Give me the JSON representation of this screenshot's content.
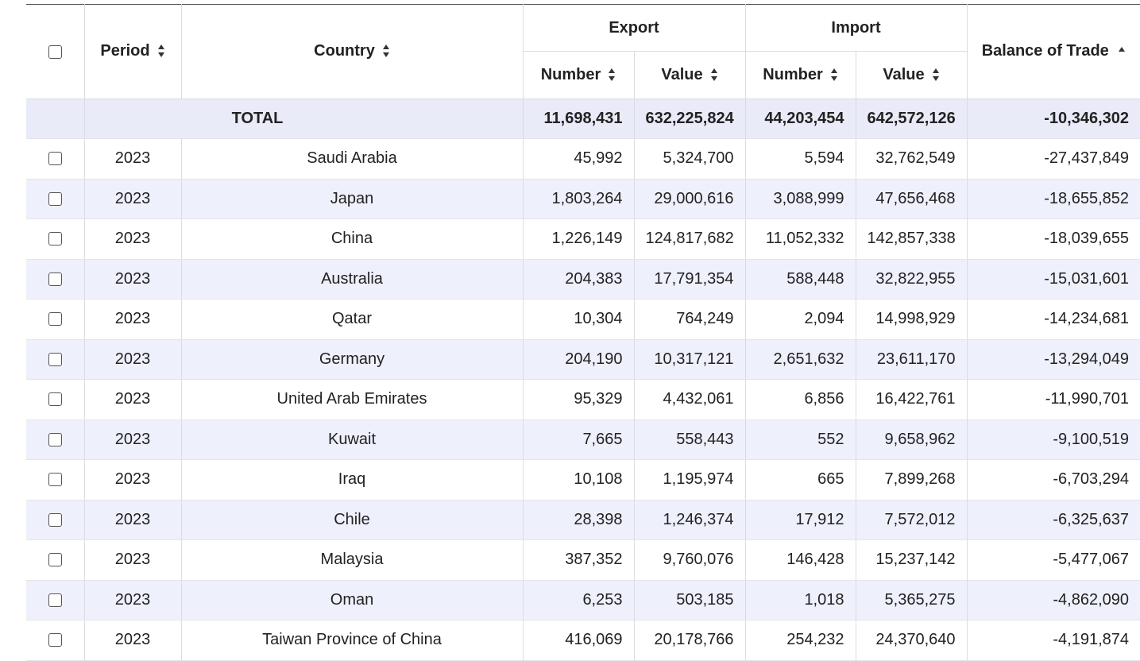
{
  "header": {
    "period": "Period",
    "country": "Country",
    "export": "Export",
    "import": "Import",
    "balance": "Balance of Trade",
    "number": "Number",
    "value": "Value"
  },
  "total": {
    "label": "TOTAL",
    "export_number": "11,698,431",
    "export_value": "632,225,824",
    "import_number": "44,203,454",
    "import_value": "642,572,126",
    "balance": "-10,346,302"
  },
  "rows": [
    {
      "period": "2023",
      "country": "Saudi Arabia",
      "export_number": "45,992",
      "export_value": "5,324,700",
      "import_number": "5,594",
      "import_value": "32,762,549",
      "balance": "-27,437,849"
    },
    {
      "period": "2023",
      "country": "Japan",
      "export_number": "1,803,264",
      "export_value": "29,000,616",
      "import_number": "3,088,999",
      "import_value": "47,656,468",
      "balance": "-18,655,852"
    },
    {
      "period": "2023",
      "country": "China",
      "export_number": "1,226,149",
      "export_value": "124,817,682",
      "import_number": "11,052,332",
      "import_value": "142,857,338",
      "balance": "-18,039,655"
    },
    {
      "period": "2023",
      "country": "Australia",
      "export_number": "204,383",
      "export_value": "17,791,354",
      "import_number": "588,448",
      "import_value": "32,822,955",
      "balance": "-15,031,601"
    },
    {
      "period": "2023",
      "country": "Qatar",
      "export_number": "10,304",
      "export_value": "764,249",
      "import_number": "2,094",
      "import_value": "14,998,929",
      "balance": "-14,234,681"
    },
    {
      "period": "2023",
      "country": "Germany",
      "export_number": "204,190",
      "export_value": "10,317,121",
      "import_number": "2,651,632",
      "import_value": "23,611,170",
      "balance": "-13,294,049"
    },
    {
      "period": "2023",
      "country": "United Arab Emirates",
      "export_number": "95,329",
      "export_value": "4,432,061",
      "import_number": "6,856",
      "import_value": "16,422,761",
      "balance": "-11,990,701"
    },
    {
      "period": "2023",
      "country": "Kuwait",
      "export_number": "7,665",
      "export_value": "558,443",
      "import_number": "552",
      "import_value": "9,658,962",
      "balance": "-9,100,519"
    },
    {
      "period": "2023",
      "country": "Iraq",
      "export_number": "10,108",
      "export_value": "1,195,974",
      "import_number": "665",
      "import_value": "7,899,268",
      "balance": "-6,703,294"
    },
    {
      "period": "2023",
      "country": "Chile",
      "export_number": "28,398",
      "export_value": "1,246,374",
      "import_number": "17,912",
      "import_value": "7,572,012",
      "balance": "-6,325,637"
    },
    {
      "period": "2023",
      "country": "Malaysia",
      "export_number": "387,352",
      "export_value": "9,760,076",
      "import_number": "146,428",
      "import_value": "15,237,142",
      "balance": "-5,477,067"
    },
    {
      "period": "2023",
      "country": "Oman",
      "export_number": "6,253",
      "export_value": "503,185",
      "import_number": "1,018",
      "import_value": "5,365,275",
      "balance": "-4,862,090"
    },
    {
      "period": "2023",
      "country": "Taiwan Province of China",
      "export_number": "416,069",
      "export_value": "20,178,766",
      "import_number": "254,232",
      "import_value": "24,370,640",
      "balance": "-4,191,874"
    }
  ],
  "colors": {
    "alt_row": "#eef0fb",
    "total_row": "#e9ebf8",
    "grid": "#dadce3"
  },
  "icons": {
    "sort": "sort-both-icon",
    "sort_active": "sort-asc-icon",
    "checkbox": "checkbox-icon"
  }
}
